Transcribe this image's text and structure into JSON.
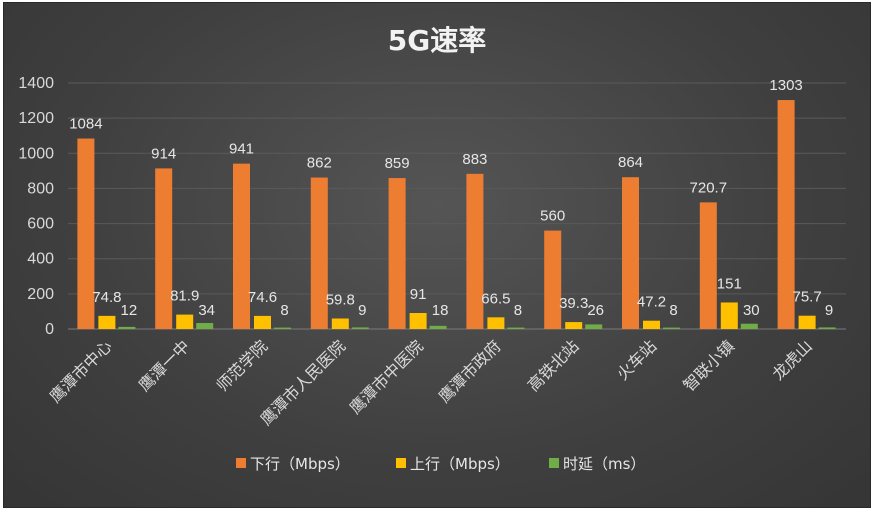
{
  "chart_data": {
    "type": "bar",
    "title": "5G速率",
    "categories": [
      "鹰潭市中心",
      "鹰潭一中",
      "师范学院",
      "鹰潭市人民医院",
      "鹰潭市中医院",
      "鹰潭市政府",
      "高铁北站",
      "火车站",
      "智联小镇",
      "龙虎山"
    ],
    "series": [
      {
        "name": "下行（Mbps）",
        "color": "#ed7d31",
        "values": [
          1084,
          914,
          941,
          862,
          859,
          883,
          560,
          864,
          720.7,
          1303
        ]
      },
      {
        "name": "上行（Mbps）",
        "color": "#ffc000",
        "values": [
          74.8,
          81.9,
          74.6,
          59.8,
          91,
          66.5,
          39.3,
          47.2,
          151,
          75.7
        ]
      },
      {
        "name": "时延（ms）",
        "color": "#70ad47",
        "values": [
          12,
          34,
          8,
          9,
          18,
          8,
          26,
          8,
          30,
          9
        ]
      }
    ],
    "ylim": [
      0,
      1400
    ],
    "yticks": [
      0,
      200,
      400,
      600,
      800,
      1000,
      1200,
      1400
    ],
    "grid": true,
    "legend": "bottom",
    "background": "#404040"
  }
}
